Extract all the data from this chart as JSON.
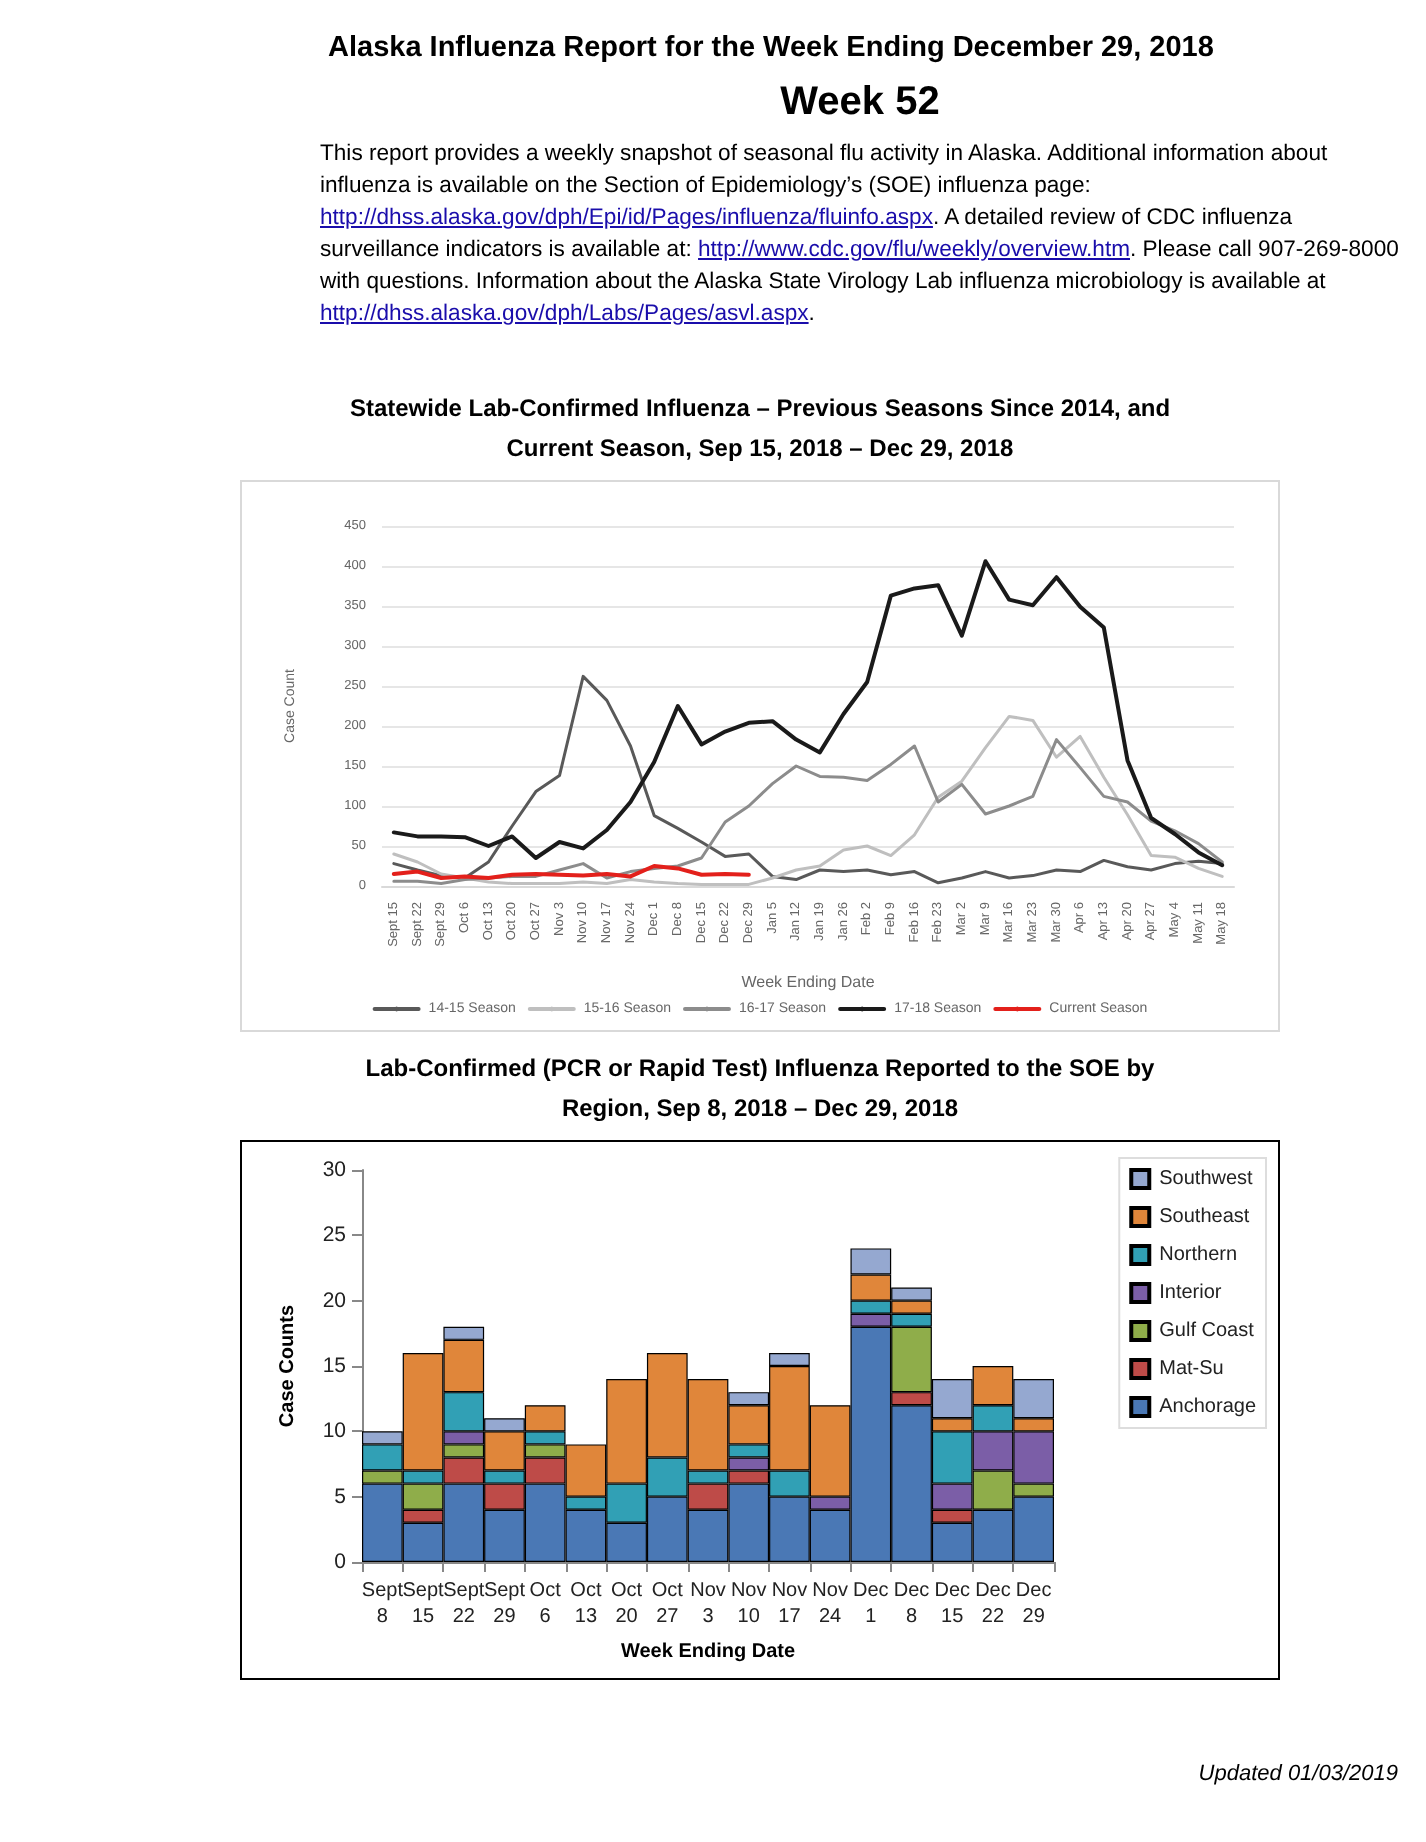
{
  "chart_data": [
    {
      "type": "line",
      "title": "Statewide Lab-Confirmed Influenza – Previous Seasons Since 2014, and Current Season, Sep 15, 2018 – Dec 29, 2018",
      "annotations": [
        "Alaska Influenza Report for the Week Ending December 29, 2018",
        "Week 52",
        "This report provides a weekly snapshot of seasonal flu activity in Alaska. Additional information about influenza is available on the Section of Epidemiology’s (SOE) influenza page: http://dhss.alaska.gov/dph/Epi/id/Pages/influenza/fluinfo.aspx. A detailed review of CDC influenza surveillance indicators is available at: http://www.cdc.gov/flu/weekly/overview.htm. Please call 907-269-8000 with questions. Information about the Alaska State Virology Lab influenza microbiology is available at http://dhss.alaska.gov/dph/Labs/Pages/asvl.aspx."
      ],
      "xlabel": "Week Ending Date",
      "ylabel": "Case Count",
      "categories": [
        "Sept 15",
        "Sept 22",
        "Sept 29",
        "Oct 6",
        "Oct 13",
        "Oct 20",
        "Oct 27",
        "Nov 3",
        "Nov 10",
        "Nov 17",
        "Nov 24",
        "Dec 1",
        "Dec 8",
        "Dec 15",
        "Dec 22",
        "Dec 29",
        "Jan 5",
        "Jan 12",
        "Jan 19",
        "Jan 26",
        "Feb 2",
        "Feb 9",
        "Feb 16",
        "Feb 23",
        "Mar 2",
        "Mar 9",
        "Mar 16",
        "Mar 23",
        "Mar 30",
        "Apr 6",
        "Apr 13",
        "Apr 20",
        "Apr 27",
        "May 4",
        "May 11",
        "May 18"
      ],
      "series": [
        {
          "name": "14-15 Season",
          "color": "#595959",
          "values": [
            28,
            20,
            13,
            10,
            30,
            75,
            118,
            138,
            262,
            232,
            175,
            88,
            72,
            55,
            37,
            40,
            12,
            8,
            20,
            18,
            20,
            14,
            18,
            4,
            10,
            18,
            10,
            13,
            20,
            18,
            32,
            24,
            20,
            28,
            31,
            28
          ]
        },
        {
          "name": "15-16 Season",
          "color": "#bfbfbf",
          "values": [
            40,
            30,
            15,
            10,
            5,
            3,
            3,
            3,
            5,
            3,
            8,
            5,
            3,
            2,
            2,
            2,
            10,
            20,
            25,
            45,
            50,
            38,
            64,
            111,
            131,
            173,
            212,
            207,
            161,
            187,
            136,
            89,
            38,
            36,
            22,
            12
          ]
        },
        {
          "name": "16-17 Season",
          "color": "#8c8c8c",
          "values": [
            6,
            6,
            3,
            8,
            10,
            12,
            12,
            20,
            28,
            10,
            18,
            22,
            25,
            35,
            80,
            100,
            128,
            150,
            137,
            136,
            132,
            152,
            175,
            105,
            127,
            90,
            100,
            112,
            183,
            148,
            112,
            105,
            81,
            69,
            53,
            30
          ]
        },
        {
          "name": "17-18 Season",
          "color": "#1a1a1a",
          "values": [
            67,
            62,
            62,
            61,
            50,
            62,
            35,
            55,
            47,
            70,
            105,
            155,
            225,
            177,
            193,
            204,
            206,
            183,
            167,
            215,
            255,
            363,
            372,
            376,
            313,
            406,
            358,
            351,
            386,
            349,
            323,
            157,
            85,
            65,
            42,
            26
          ]
        },
        {
          "name": "Current Season",
          "color": "#e3201b",
          "values": [
            15,
            18,
            10,
            12,
            10,
            14,
            15,
            14,
            13,
            15,
            12,
            25,
            22,
            14,
            15,
            14,
            null,
            null,
            null,
            null,
            null,
            null,
            null,
            null,
            null,
            null,
            null,
            null,
            null,
            null,
            null,
            null,
            null,
            null,
            null,
            null
          ]
        }
      ],
      "ylim": [
        0,
        450
      ],
      "yticks": [
        0,
        50,
        100,
        150,
        200,
        250,
        300,
        350,
        400,
        450
      ],
      "grid": "y",
      "legend": "bottom",
      "marker": "none"
    },
    {
      "type": "bar",
      "stacked": true,
      "title": "Lab-Confirmed (PCR or Rapid Test) Influenza Reported to the SOE by Region, Sep 8, 2018 – Dec 29, 2018",
      "annotations": [
        "Updated 01/03/2019"
      ],
      "xlabel": "Week Ending Date",
      "ylabel": "Case Counts",
      "categories": [
        "Sept 8",
        "Sept 15",
        "Sept 22",
        "Sept 29",
        "Oct 6",
        "Oct 13",
        "Oct 20",
        "Oct 27",
        "Nov 3",
        "Nov 10",
        "Nov 17",
        "Nov 24",
        "Dec 1",
        "Dec 8",
        "Dec 15",
        "Dec 22",
        "Dec 29"
      ],
      "series": [
        {
          "name": "Anchorage",
          "color": "#4a78b5",
          "values": [
            6,
            3,
            6,
            4,
            6,
            4,
            3,
            5,
            4,
            6,
            5,
            4,
            18,
            12,
            3,
            4,
            5
          ]
        },
        {
          "name": "Mat-Su",
          "color": "#be4b48",
          "values": [
            null,
            1,
            2,
            2,
            2,
            null,
            null,
            null,
            2,
            1,
            null,
            null,
            null,
            1,
            1,
            null,
            null
          ]
        },
        {
          "name": "Gulf Coast",
          "color": "#8fad4a",
          "values": [
            1,
            2,
            1,
            null,
            1,
            null,
            null,
            null,
            null,
            null,
            null,
            null,
            null,
            5,
            null,
            3,
            1
          ]
        },
        {
          "name": "Interior",
          "color": "#7b5ea7",
          "values": [
            null,
            null,
            1,
            null,
            null,
            null,
            null,
            null,
            null,
            1,
            null,
            1,
            1,
            null,
            2,
            3,
            4
          ]
        },
        {
          "name": "Northern",
          "color": "#31a0b5",
          "values": [
            2,
            1,
            3,
            1,
            1,
            1,
            3,
            3,
            1,
            1,
            2,
            null,
            1,
            1,
            4,
            2,
            null
          ]
        },
        {
          "name": "Southeast",
          "color": "#e0863a",
          "values": [
            null,
            9,
            4,
            3,
            2,
            4,
            8,
            8,
            7,
            3,
            8,
            7,
            2,
            1,
            1,
            3,
            1
          ]
        },
        {
          "name": "Southwest",
          "color": "#95a8d0",
          "values": [
            1,
            null,
            1,
            1,
            null,
            null,
            null,
            null,
            null,
            1,
            1,
            null,
            2,
            1,
            3,
            null,
            3
          ]
        }
      ],
      "ylim": [
        0,
        30
      ],
      "yticks": [
        0,
        5,
        10,
        15,
        20,
        25,
        30
      ],
      "grid": false,
      "legend": "top right"
    }
  ]
}
